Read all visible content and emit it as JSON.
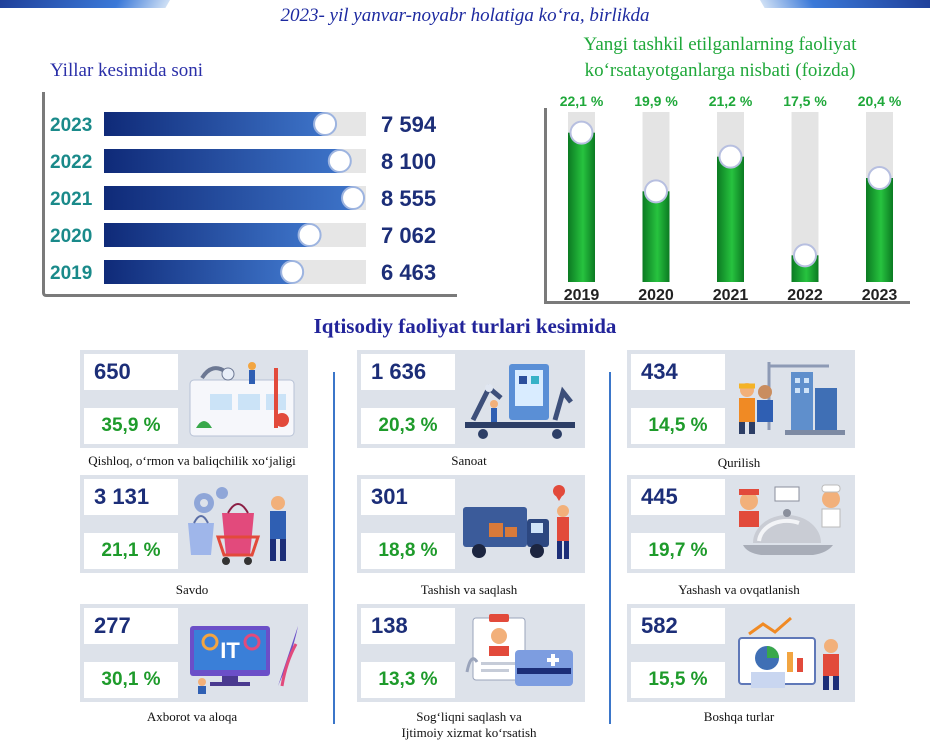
{
  "header": {
    "subtitle": "2023- yil yanvar-noyabr holatiga koʻra, birlikda"
  },
  "chart_data": [
    {
      "type": "bar",
      "orientation": "horizontal",
      "title": "Yillar kesimida soni",
      "categories": [
        "2023",
        "2022",
        "2021",
        "2020",
        "2019"
      ],
      "values": [
        7594,
        8100,
        8555,
        7062,
        6463
      ],
      "value_labels": [
        "7 594",
        "8 100",
        "8 555",
        "7 062",
        "6 463"
      ],
      "colors": {
        "bar_dark": "#0f2a78",
        "bar_light": "#3d73c8",
        "track": "#e6e6e6",
        "value_text": "#1c2e78",
        "year_text": "#1a8a8a"
      }
    },
    {
      "type": "bar",
      "orientation": "vertical",
      "title": "Yangi tashkil etilganlarning faoliyat koʻrsatayotganlarga nisbati (foizda)",
      "title_lines": [
        "Yangi tashkil etilganlarning faoliyat",
        "koʻrsatayotganlarga nisbati (foizda)"
      ],
      "categories": [
        "2019",
        "2020",
        "2021",
        "2022",
        "2023"
      ],
      "values": [
        22.1,
        19.9,
        21.2,
        17.5,
        20.4
      ],
      "value_labels": [
        "22,1 %",
        "19,9 %",
        "21,2 %",
        "17,5 %",
        "20,4 %"
      ],
      "colors": {
        "bar_dark": "#0b7a22",
        "bar_light": "#27c33f",
        "track": "#e4e4e4",
        "value_text": "#1fa83a"
      }
    }
  ],
  "section": {
    "title": "Iqtisodiy faoliyat turlari kesimida",
    "cards": [
      {
        "count": "650",
        "percent": "35,9 %",
        "label": "Qishloq, oʻrmon va baliqchilik xoʻjaligi",
        "icon": "agriculture-icon"
      },
      {
        "count": "1 636",
        "percent": "20,3 %",
        "label": "Sanoat",
        "icon": "industry-icon"
      },
      {
        "count": "434",
        "percent": "14,5 %",
        "label": "Qurilish",
        "icon": "construction-icon"
      },
      {
        "count": "3 131",
        "percent": "21,1 %",
        "label": "Savdo",
        "icon": "trade-icon"
      },
      {
        "count": "301",
        "percent": "18,8 %",
        "label": "Tashish va saqlash",
        "icon": "transport-icon"
      },
      {
        "count": "445",
        "percent": "19,7 %",
        "label": "Yashash va ovqatlanish",
        "icon": "food-service-icon"
      },
      {
        "count": "277",
        "percent": "30,1 %",
        "label": "Axborot va aloqa",
        "icon": "it-icon"
      },
      {
        "count": "138",
        "percent": "13,3 %",
        "label": "Sogʻliqni saqlash va",
        "label2": "Ijtimoiy xizmat koʻrsatish",
        "icon": "health-icon"
      },
      {
        "count": "582",
        "percent": "15,5 %",
        "label": "Boshqa turlar",
        "icon": "other-icon"
      }
    ]
  }
}
